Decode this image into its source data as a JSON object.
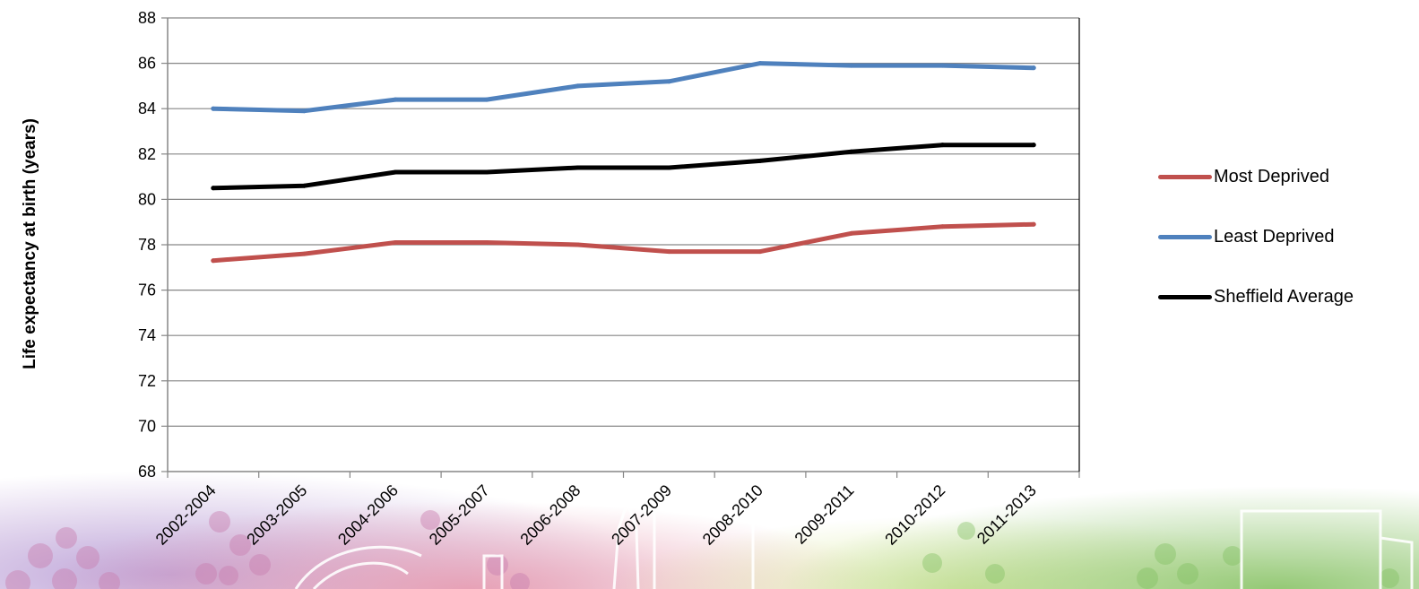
{
  "chart_data": {
    "type": "line",
    "title": "",
    "xlabel": "",
    "ylabel": "Life expectancy at birth (years)",
    "ylim": [
      68,
      88
    ],
    "yticks": [
      68,
      70,
      72,
      74,
      76,
      78,
      80,
      82,
      84,
      86,
      88
    ],
    "categories": [
      "2002-2004",
      "2003-2005",
      "2004-2006",
      "2005-2007",
      "2006-2008",
      "2007-2009",
      "2008-2010",
      "2009-2011",
      "2010-2012",
      "2011-2013"
    ],
    "series": [
      {
        "name": "Most Deprived",
        "color": "#c0504d",
        "values": [
          77.3,
          77.6,
          78.1,
          78.1,
          78.0,
          77.7,
          77.7,
          78.5,
          78.8,
          78.9
        ]
      },
      {
        "name": "Least Deprived",
        "color": "#4f81bd",
        "values": [
          84.0,
          83.9,
          84.4,
          84.4,
          85.0,
          85.2,
          86.0,
          85.9,
          85.9,
          85.8
        ]
      },
      {
        "name": "Sheffield Average",
        "color": "#000000",
        "values": [
          80.5,
          80.6,
          81.2,
          81.2,
          81.4,
          81.4,
          81.7,
          82.1,
          82.4,
          82.4
        ]
      }
    ],
    "grid": "horizontal",
    "legend_position": "right"
  }
}
